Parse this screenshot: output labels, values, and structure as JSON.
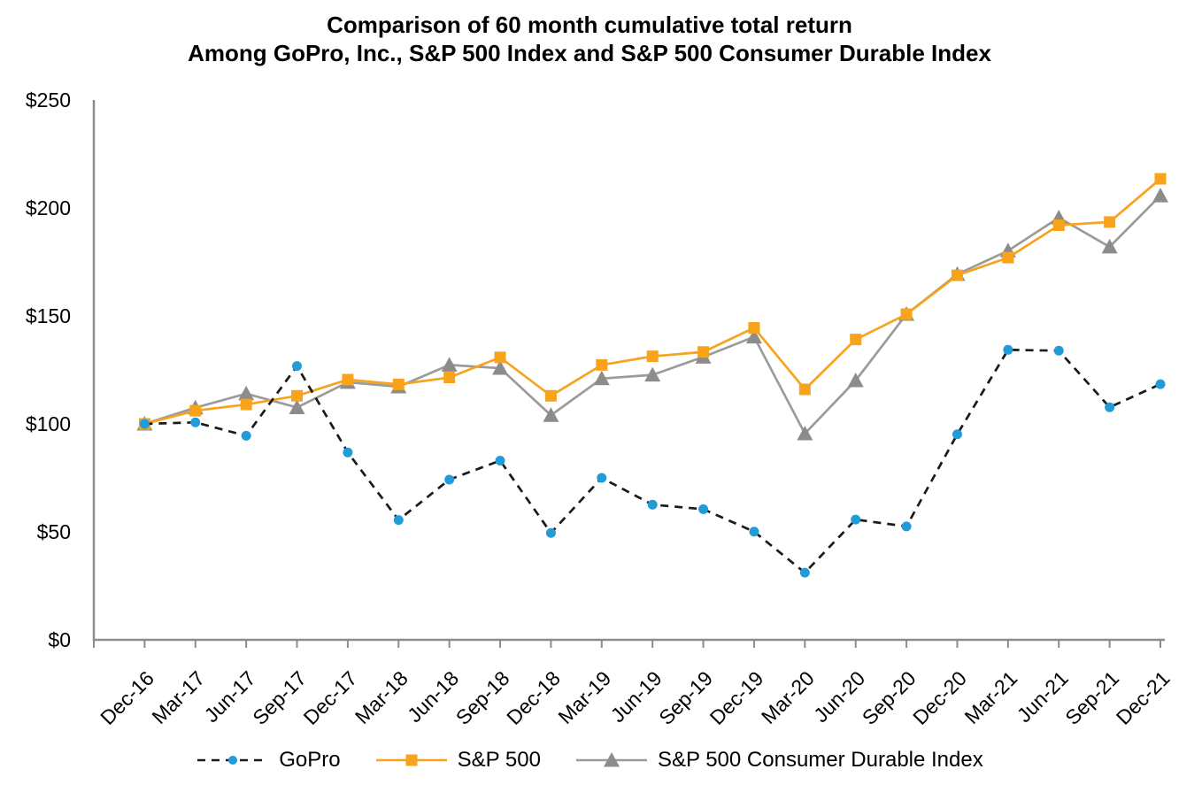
{
  "title": {
    "line1": "Comparison of 60 month cumulative total return",
    "line2": "Among GoPro, Inc., S&P 500 Index and S&P 500 Consumer Durable Index"
  },
  "chart_data": {
    "type": "line",
    "title": "Comparison of 60 month cumulative total return Among GoPro, Inc., S&P 500 Index and S&P 500 Consumer Durable Index",
    "categories": [
      "Dec-16",
      "Mar-17",
      "Jun-17",
      "Sep-17",
      "Dec-17",
      "Mar-18",
      "Jun-18",
      "Sep-18",
      "Dec-18",
      "Mar-19",
      "Jun-19",
      "Sep-19",
      "Dec-19",
      "Mar-20",
      "Jun-20",
      "Sep-20",
      "Dec-20",
      "Mar-21",
      "Jun-21",
      "Sep-21",
      "Dec-21"
    ],
    "series": [
      {
        "name": "GoPro",
        "marker": "circle",
        "marker_color": "#219CD8",
        "line_color": "#1A1A1A",
        "line_style": "dashed",
        "values": [
          100,
          100.7,
          94.5,
          126.8,
          86.8,
          55.5,
          74.2,
          83.0,
          49.5,
          75.0,
          62.6,
          60.5,
          50.1,
          31.1,
          55.7,
          52.5,
          95.2,
          134.3,
          133.9,
          107.7,
          118.4
        ]
      },
      {
        "name": "S&P 500",
        "marker": "square",
        "marker_color": "#F7A31C",
        "line_color": "#F7A31C",
        "line_style": "solid",
        "values": [
          100,
          106.1,
          109.0,
          113.0,
          120.5,
          118.3,
          121.5,
          130.8,
          113.0,
          127.3,
          131.3,
          133.3,
          144.5,
          116.0,
          139.1,
          150.8,
          168.8,
          177.0,
          192.0,
          193.5,
          213.5
        ]
      },
      {
        "name": "S&P 500 Consumer Durable Index",
        "marker": "triangle",
        "marker_color": "#8C8C8C",
        "line_color": "#9B9B9B",
        "line_style": "solid",
        "values": [
          100,
          107.5,
          114.0,
          107.6,
          119.3,
          117.2,
          127.3,
          125.8,
          104.0,
          121.0,
          122.7,
          131.0,
          140.3,
          95.5,
          120.1,
          150.8,
          169.3,
          180.2,
          195.5,
          182.0,
          205.7
        ]
      }
    ],
    "xlabel": "",
    "ylabel": "",
    "ylim": [
      0,
      250
    ],
    "y_ticks": [
      "$0",
      "$50",
      "$100",
      "$150",
      "$200",
      "$250"
    ],
    "y_tick_values": [
      0,
      50,
      100,
      150,
      200,
      250
    ],
    "grid": false,
    "legend_position": "bottom",
    "x_tick_rotation": 45,
    "axis_color": "#8C8C8C"
  }
}
